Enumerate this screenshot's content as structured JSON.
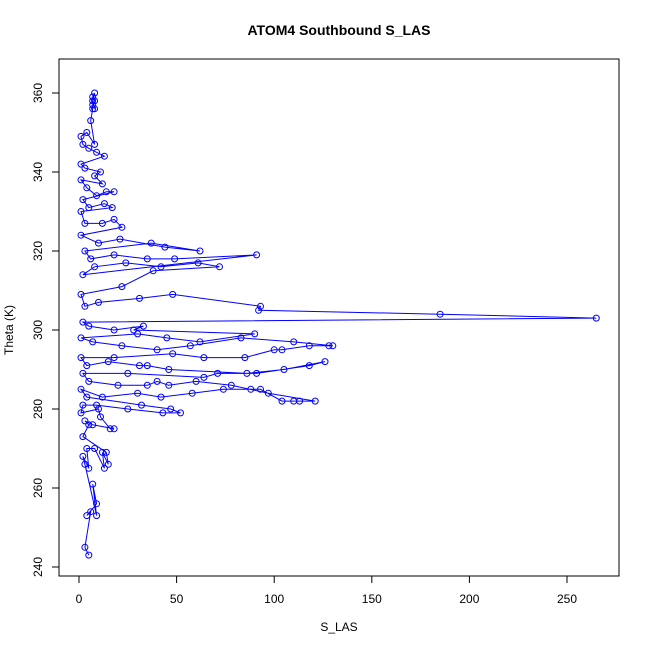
{
  "chart_data": {
    "type": "line",
    "title": "ATOM4 Southbound S_LAS",
    "xlabel": "S_LAS",
    "ylabel": "Theta (K)",
    "xlim": [
      0,
      275
    ],
    "ylim": [
      240,
      368
    ],
    "x_ticks": [
      0,
      50,
      100,
      150,
      200,
      250
    ],
    "y_ticks": [
      240,
      260,
      280,
      300,
      320,
      340,
      360
    ],
    "grid": false,
    "legend": "none",
    "marker": "open-circle",
    "line_and_marker": true,
    "series_color": "#0000ff",
    "series": [
      {
        "points": [
          [
            5,
            243
          ],
          [
            3,
            245
          ],
          [
            6,
            254
          ],
          [
            4,
            253
          ],
          [
            9,
            256
          ],
          [
            7,
            261
          ],
          [
            9,
            253
          ],
          [
            3,
            266
          ],
          [
            2,
            268
          ],
          [
            5,
            265
          ],
          [
            4,
            270
          ],
          [
            8,
            270
          ],
          [
            13,
            265
          ],
          [
            12,
            269
          ],
          [
            15,
            266
          ],
          [
            14,
            269
          ],
          [
            2,
            273
          ],
          [
            5,
            276
          ],
          [
            3,
            277
          ],
          [
            7,
            276
          ],
          [
            18,
            275
          ],
          [
            16,
            275
          ],
          [
            11,
            278
          ],
          [
            10,
            280
          ],
          [
            1,
            279
          ],
          [
            2,
            281
          ],
          [
            9,
            281
          ],
          [
            25,
            280
          ],
          [
            43,
            279
          ],
          [
            52,
            279
          ],
          [
            47,
            280
          ],
          [
            32,
            281
          ],
          [
            4,
            283
          ],
          [
            1,
            285
          ],
          [
            12,
            283
          ],
          [
            30,
            284
          ],
          [
            42,
            283
          ],
          [
            58,
            284
          ],
          [
            74,
            285
          ],
          [
            88,
            285
          ],
          [
            93,
            285
          ],
          [
            104,
            282
          ],
          [
            110,
            282
          ],
          [
            113,
            282
          ],
          [
            121,
            282
          ],
          [
            97,
            284
          ],
          [
            78,
            286
          ],
          [
            60,
            287
          ],
          [
            46,
            286
          ],
          [
            40,
            287
          ],
          [
            35,
            286
          ],
          [
            20,
            286
          ],
          [
            5,
            287
          ],
          [
            2,
            289
          ],
          [
            25,
            289
          ],
          [
            64,
            288
          ],
          [
            71,
            289
          ],
          [
            91,
            289
          ],
          [
            118,
            291
          ],
          [
            126,
            292
          ],
          [
            105,
            290
          ],
          [
            86,
            289
          ],
          [
            46,
            290
          ],
          [
            35,
            291
          ],
          [
            31,
            291
          ],
          [
            15,
            292
          ],
          [
            4,
            291
          ],
          [
            1,
            293
          ],
          [
            18,
            293
          ],
          [
            48,
            294
          ],
          [
            64,
            293
          ],
          [
            85,
            293
          ],
          [
            100,
            295
          ],
          [
            104,
            295
          ],
          [
            118,
            296
          ],
          [
            128,
            296
          ],
          [
            130,
            296
          ],
          [
            110,
            297
          ],
          [
            83,
            298
          ],
          [
            57,
            296
          ],
          [
            40,
            295
          ],
          [
            22,
            296
          ],
          [
            7,
            297
          ],
          [
            1,
            298
          ],
          [
            30,
            299
          ],
          [
            45,
            298
          ],
          [
            62,
            297
          ],
          [
            90,
            299
          ],
          [
            28,
            300
          ],
          [
            33,
            301
          ],
          [
            18,
            300
          ],
          [
            5,
            301
          ],
          [
            2,
            302
          ],
          [
            265,
            303
          ],
          [
            185,
            304
          ],
          [
            92,
            305
          ],
          [
            93,
            306
          ],
          [
            48,
            309
          ],
          [
            31,
            308
          ],
          [
            10,
            307
          ],
          [
            3,
            306
          ],
          [
            1,
            309
          ],
          [
            22,
            311
          ],
          [
            38,
            315
          ],
          [
            72,
            316
          ],
          [
            61,
            317
          ],
          [
            42,
            316
          ],
          [
            24,
            317
          ],
          [
            8,
            316
          ],
          [
            2,
            314
          ],
          [
            91,
            319
          ],
          [
            49,
            318
          ],
          [
            35,
            318
          ],
          [
            18,
            319
          ],
          [
            6,
            318
          ],
          [
            3,
            320
          ],
          [
            37,
            322
          ],
          [
            62,
            320
          ],
          [
            44,
            321
          ],
          [
            21,
            323
          ],
          [
            10,
            322
          ],
          [
            1,
            324
          ],
          [
            22,
            326
          ],
          [
            18,
            328
          ],
          [
            12,
            327
          ],
          [
            3,
            327
          ],
          [
            1,
            330
          ],
          [
            17,
            331
          ],
          [
            13,
            332
          ],
          [
            5,
            331
          ],
          [
            2,
            333
          ],
          [
            18,
            335
          ],
          [
            14,
            335
          ],
          [
            9,
            334
          ],
          [
            4,
            336
          ],
          [
            1,
            338
          ],
          [
            12,
            337
          ],
          [
            8,
            339
          ],
          [
            11,
            340
          ],
          [
            3,
            341
          ],
          [
            1,
            342
          ],
          [
            13,
            344
          ],
          [
            9,
            345
          ],
          [
            5,
            346
          ],
          [
            2,
            347
          ],
          [
            1,
            349
          ],
          [
            4,
            350
          ],
          [
            8,
            347
          ],
          [
            6,
            353
          ],
          [
            7,
            356
          ],
          [
            7,
            357
          ],
          [
            8,
            358
          ],
          [
            7,
            359
          ],
          [
            8,
            360
          ],
          [
            7,
            358
          ],
          [
            8,
            356
          ]
        ]
      }
    ]
  }
}
